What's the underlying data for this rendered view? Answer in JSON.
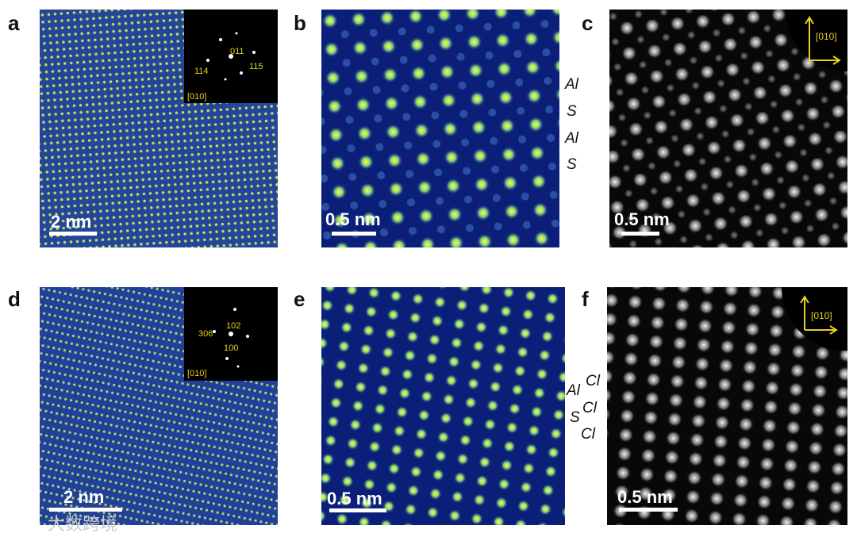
{
  "panels": [
    {
      "label": "a",
      "scale_bar": "2 nm",
      "inset": {
        "labels": [
          "011",
          "114",
          "115"
        ],
        "zone_axis": "[010]"
      }
    },
    {
      "label": "b",
      "scale_bar": "0.5 nm",
      "annotations": [
        "Al",
        "S",
        "Al",
        "S"
      ]
    },
    {
      "label": "c",
      "scale_bar": "0.5 nm",
      "direction": "[010]"
    },
    {
      "label": "d",
      "scale_bar": "2 nm",
      "inset": {
        "labels": [
          "102",
          "306",
          "100"
        ],
        "zone_axis": "[010]"
      }
    },
    {
      "label": "e",
      "scale_bar": "0.5 nm",
      "annotations": [
        "Al",
        "Cl",
        "S",
        "Cl",
        "Cl"
      ]
    },
    {
      "label": "f",
      "scale_bar": "0.5 nm",
      "direction": "[010]"
    }
  ],
  "watermark": "大数跨境"
}
